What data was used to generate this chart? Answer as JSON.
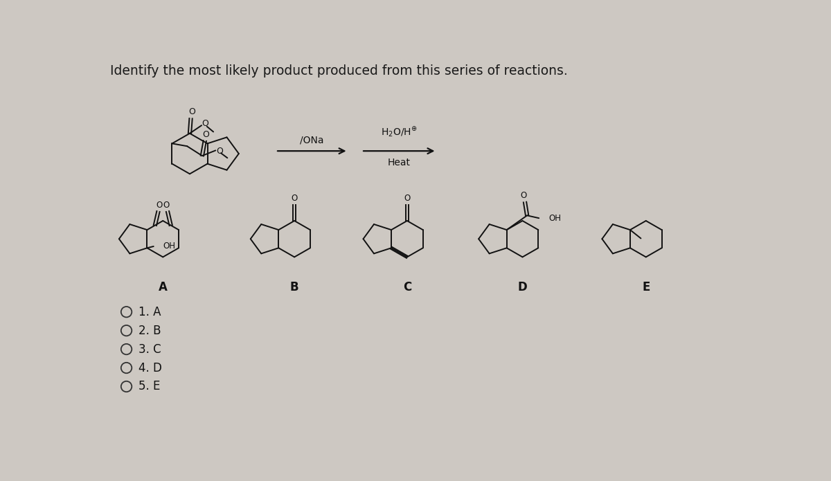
{
  "title": "Identify the most likely product produced from this series of reactions.",
  "bg_color": "#cdc8c2",
  "text_color": "#1a1a1a",
  "answer_options": [
    "1. A",
    "2. B",
    "3. C",
    "4. D",
    "5. E"
  ],
  "structure_labels": [
    "A",
    "B",
    "C",
    "D",
    "E"
  ],
  "font_size_title": 13.5,
  "font_size_labels": 12,
  "font_size_answer": 12
}
